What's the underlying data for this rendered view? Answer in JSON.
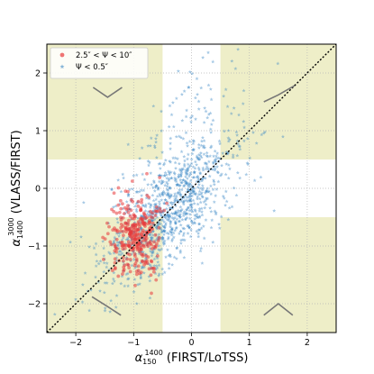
{
  "chart_data": {
    "type": "scatter",
    "xlabel_parts": {
      "base": "α",
      "sub": "150",
      "sup": "1400",
      "rest": " (FIRST/LoTSS)"
    },
    "ylabel_parts": {
      "base": "α",
      "sub": "1400",
      "sup": "3000",
      "rest": " (VLASS/FIRST)"
    },
    "xlim": [
      -2.5,
      2.5
    ],
    "ylim": [
      -2.5,
      2.5
    ],
    "xticks": [
      "−2",
      "−1",
      "0",
      "1",
      "2"
    ],
    "yticks": [
      "−2",
      "−1",
      "0",
      "1",
      "2"
    ],
    "grid": true,
    "legend_position": "top-left",
    "shaded_band_x": [
      -0.5,
      0.5
    ],
    "shaded_band_y": [
      -0.5,
      0.5
    ],
    "shade_color": "#eeeec8",
    "one_to_one_line": true,
    "series": [
      {
        "name": "2.5″ < Ψ < 10″",
        "color": "#e8393a",
        "marker": "circle",
        "n": 300,
        "center": [
          -0.95,
          -0.8
        ],
        "spread": [
          0.22,
          0.38
        ]
      },
      {
        "name": "Ψ < 0.5″",
        "color": "#3a87c5",
        "marker": "star",
        "n": 1100,
        "center": [
          -0.35,
          -0.35
        ],
        "spread": [
          0.55,
          0.6
        ]
      }
    ]
  }
}
